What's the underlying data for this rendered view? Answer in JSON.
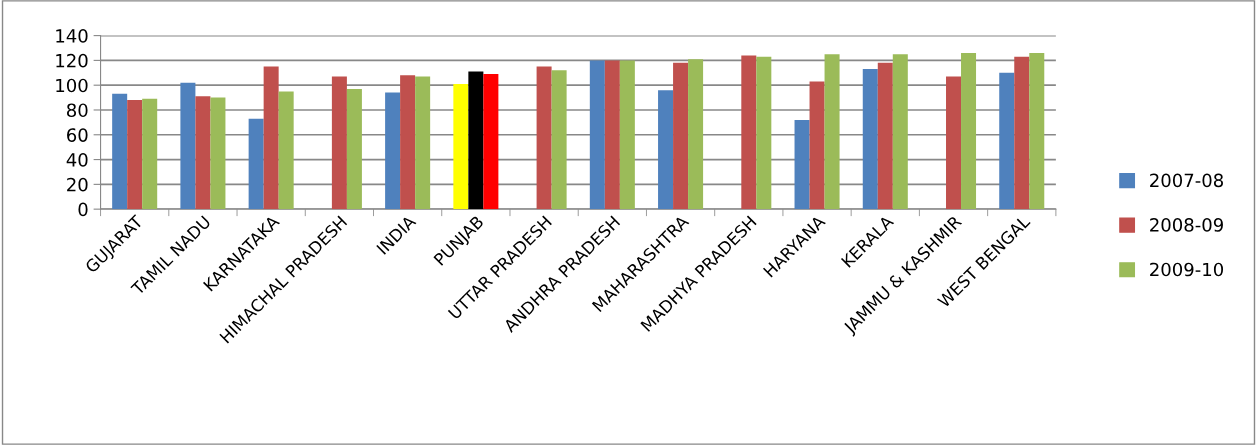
{
  "chart_data": {
    "type": "bar",
    "categories": [
      "GUJARAT",
      "TAMIL NADU",
      "KARNATAKA",
      "HIMACHAL PRADESH",
      "INDIA",
      "PUNJAB",
      "UTTAR PRADESH",
      "ANDHRA PRADESH",
      "MAHARASHTRA",
      "MADHYA PRADESH",
      "HARYANA",
      "KERALA",
      "JAMMU & KASHMIR",
      "WEST BENGAL"
    ],
    "series": [
      {
        "name": "2007-08",
        "color": "#4f81bd",
        "colors": [
          "#4f81bd",
          "#4f81bd",
          "#4f81bd",
          "#4f81bd",
          "#4f81bd",
          "#ffff00",
          "#4f81bd",
          "#4f81bd",
          "#4f81bd",
          "#4f81bd",
          "#4f81bd",
          "#4f81bd",
          "#4f81bd",
          "#4f81bd"
        ],
        "values": [
          93,
          102,
          73,
          null,
          94,
          101,
          null,
          120,
          96,
          null,
          72,
          113,
          null,
          110
        ]
      },
      {
        "name": "2008-09",
        "color": "#c0504d",
        "colors": [
          "#c0504d",
          "#c0504d",
          "#c0504d",
          "#c0504d",
          "#c0504d",
          "#000000",
          "#c0504d",
          "#c0504d",
          "#c0504d",
          "#c0504d",
          "#c0504d",
          "#c0504d",
          "#c0504d",
          "#c0504d"
        ],
        "values": [
          88,
          91,
          115,
          107,
          108,
          111,
          115,
          120,
          118,
          124,
          103,
          118,
          107,
          123
        ]
      },
      {
        "name": "2009-10",
        "color": "#9bbb59",
        "colors": [
          "#9bbb59",
          "#9bbb59",
          "#9bbb59",
          "#9bbb59",
          "#9bbb59",
          "#ff0000",
          "#9bbb59",
          "#9bbb59",
          "#9bbb59",
          "#9bbb59",
          "#9bbb59",
          "#9bbb59",
          "#9bbb59",
          "#9bbb59"
        ],
        "values": [
          89,
          90,
          95,
          97,
          107,
          109,
          112,
          120,
          121,
          123,
          125,
          125,
          126,
          126
        ]
      }
    ],
    "ylim": [
      0,
      140
    ],
    "yticks": [
      0,
      20,
      40,
      60,
      80,
      100,
      120,
      140
    ],
    "grid": "y",
    "legend": "right"
  }
}
